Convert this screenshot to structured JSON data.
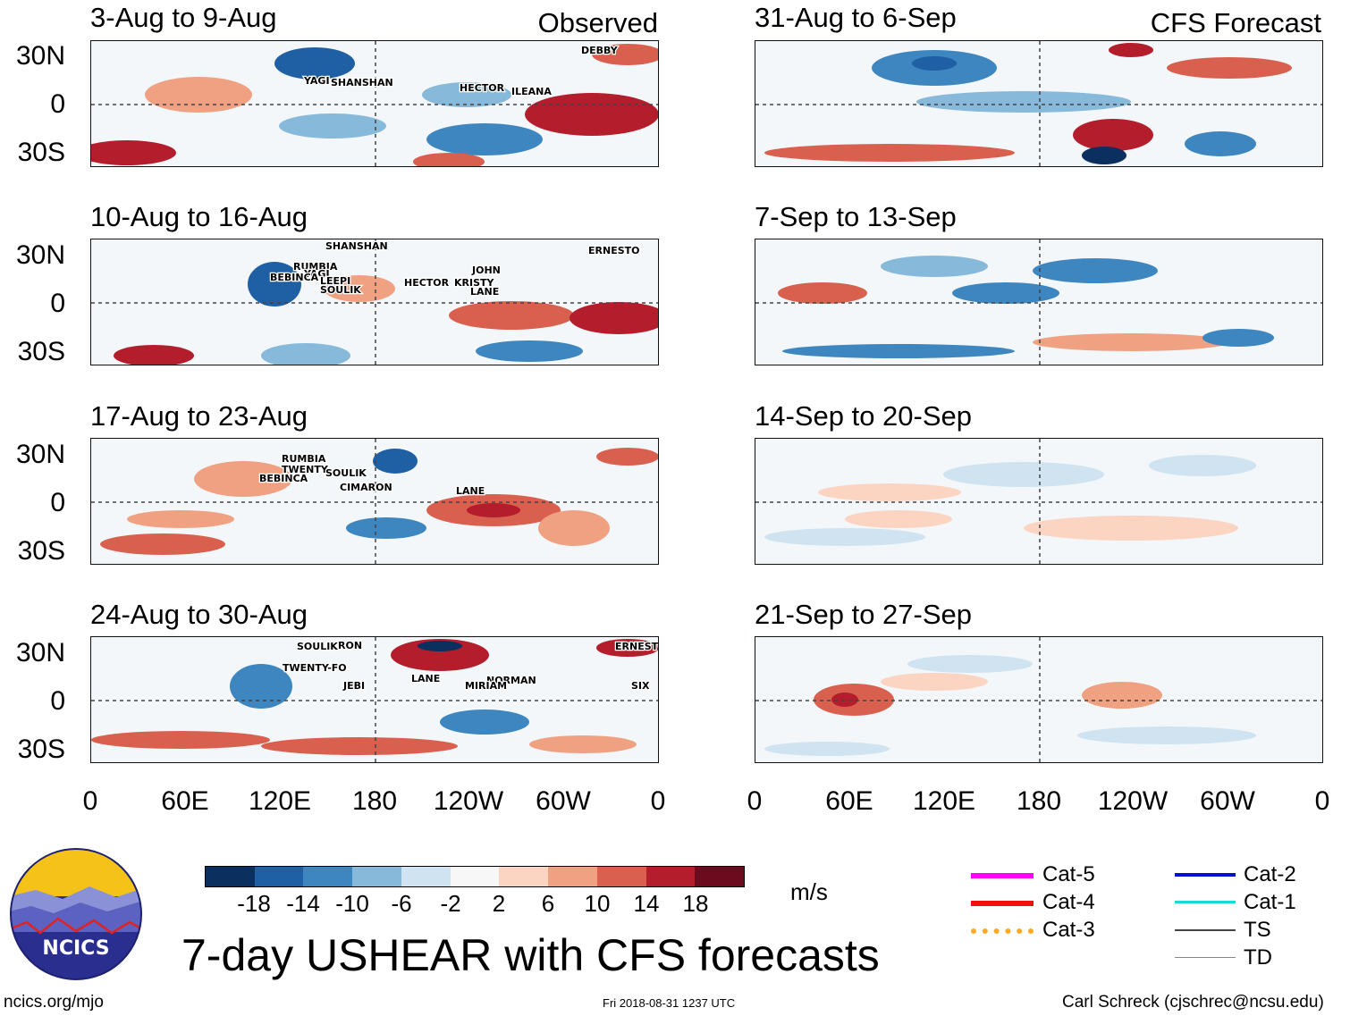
{
  "figure": {
    "title": "7-day USHEAR with CFS forecasts",
    "units": "m/s",
    "column_tags": [
      "Observed",
      "CFS Forecast"
    ],
    "lat_ticks": [
      "30N",
      "0",
      "30S"
    ],
    "lon_ticks": [
      "0",
      "60E",
      "120E",
      "180",
      "120W",
      "60W",
      "0"
    ],
    "logo_text": "NCICS",
    "footer_left": "ncics.org/mjo",
    "footer_center": "Fri 2018-08-31 1237 UTC",
    "footer_right": "Carl Schreck (cjschrec@ncsu.edu)"
  },
  "chart_data": {
    "type": "heatmap",
    "variable": "7-day USHEAR",
    "colorbar": {
      "ticks": [
        "-18",
        "-14",
        "-10",
        "-6",
        "-2",
        "2",
        "6",
        "10",
        "14",
        "18"
      ],
      "colors": [
        "#0b2f5e",
        "#1f5fa3",
        "#3d86bf",
        "#87b9da",
        "#cfe3f0",
        "#f7f7f7",
        "#fbd4c2",
        "#f0a182",
        "#d9604e",
        "#b41d2b",
        "#6d0b1e"
      ]
    },
    "track_legend": [
      {
        "label": "Cat-5",
        "color": "#ff00ff"
      },
      {
        "label": "Cat-4",
        "color": "#ee1111"
      },
      {
        "label": "Cat-3",
        "color": "#ffaa22"
      },
      {
        "label": "Cat-2",
        "color": "#0011cc"
      },
      {
        "label": "Cat-1",
        "color": "#11dddd"
      },
      {
        "label": "TS",
        "color": "#444444"
      },
      {
        "label": "TD",
        "color": "#888888"
      }
    ],
    "panels": [
      {
        "title": "3-Aug to 9-Aug",
        "source": "Observed",
        "storms": [
          "DEBBY",
          "YAGI",
          "SHANSHAN",
          "HECTOR",
          "ILEANA"
        ]
      },
      {
        "title": "10-Aug to 16-Aug",
        "source": "Observed",
        "storms": [
          "SHANSHAN",
          "ERNESTO",
          "RUMBIA",
          "YAGI",
          "BEBINCA",
          "LEEPI",
          "SOULIK",
          "JOHN",
          "HECTOR",
          "KRISTY",
          "LANE"
        ]
      },
      {
        "title": "17-Aug to 23-Aug",
        "source": "Observed",
        "storms": [
          "RUMBIA",
          "TWENTY",
          "SOULIK",
          "BEBINCA",
          "CIMARON",
          "LANE"
        ]
      },
      {
        "title": "24-Aug to 30-Aug",
        "source": "Observed",
        "storms": [
          "SOULIK",
          "RON",
          "TWENTY-FO",
          "JEBI",
          "LANE",
          "NORMAN",
          "MIRIAM",
          "SIX",
          "ERNESTO"
        ]
      },
      {
        "title": "31-Aug to 6-Sep",
        "source": "CFS Forecast",
        "storms": []
      },
      {
        "title": "7-Sep to 13-Sep",
        "source": "CFS Forecast",
        "storms": []
      },
      {
        "title": "14-Sep to 20-Sep",
        "source": "CFS Forecast",
        "storms": []
      },
      {
        "title": "21-Sep to 27-Sep",
        "source": "CFS Forecast",
        "storms": []
      }
    ]
  }
}
